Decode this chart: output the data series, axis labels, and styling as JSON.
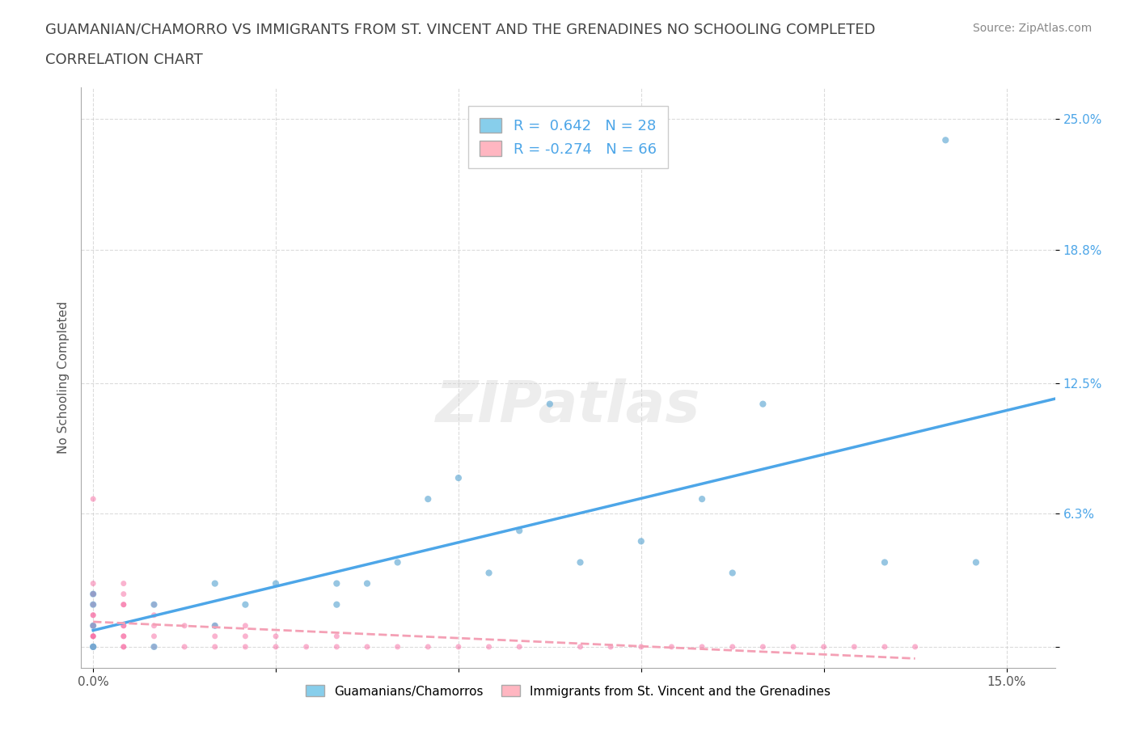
{
  "title_line1": "GUAMANIAN/CHAMORRO VS IMMIGRANTS FROM ST. VINCENT AND THE GRENADINES NO SCHOOLING COMPLETED",
  "title_line2": "CORRELATION CHART",
  "source_text": "Source: ZipAtlas.com",
  "xlabel": "",
  "ylabel": "No Schooling Completed",
  "x_ticks": [
    0.0,
    0.03,
    0.06,
    0.09,
    0.12,
    0.15
  ],
  "x_tick_labels": [
    "0.0%",
    "",
    "",
    "",
    "",
    "15.0%"
  ],
  "y_ticks": [
    0.0,
    0.063,
    0.125,
    0.188,
    0.25
  ],
  "y_tick_labels": [
    "",
    "6.3%",
    "12.5%",
    "18.8%",
    "25.0%"
  ],
  "xlim": [
    -0.002,
    0.158
  ],
  "ylim": [
    -0.01,
    0.265
  ],
  "blue_R": 0.642,
  "blue_N": 28,
  "pink_R": -0.274,
  "pink_N": 66,
  "blue_color": "#87CEEB",
  "blue_marker_color": "#6baed6",
  "pink_color": "#FFB6C1",
  "pink_marker_color": "#f768a1",
  "blue_line_color": "#4da6e8",
  "pink_line_color": "#f4a0b5",
  "watermark": "ZIPatlas",
  "legend_label_blue": "Guamanians/Chamorros",
  "legend_label_pink": "Immigrants from St. Vincent and the Grenadines",
  "blue_scatter_x": [
    0.0,
    0.0,
    0.0,
    0.0,
    0.0,
    0.01,
    0.01,
    0.02,
    0.02,
    0.025,
    0.03,
    0.04,
    0.04,
    0.045,
    0.05,
    0.055,
    0.06,
    0.065,
    0.07,
    0.075,
    0.08,
    0.09,
    0.1,
    0.105,
    0.11,
    0.13,
    0.14,
    0.145
  ],
  "blue_scatter_y": [
    0.0,
    0.0,
    0.01,
    0.02,
    0.025,
    0.0,
    0.02,
    0.01,
    0.03,
    0.02,
    0.03,
    0.02,
    0.03,
    0.03,
    0.04,
    0.07,
    0.08,
    0.035,
    0.055,
    0.115,
    0.04,
    0.05,
    0.07,
    0.035,
    0.115,
    0.04,
    0.24,
    0.04
  ],
  "pink_scatter_x": [
    0.0,
    0.0,
    0.0,
    0.0,
    0.0,
    0.0,
    0.0,
    0.0,
    0.0,
    0.0,
    0.0,
    0.0,
    0.0,
    0.0,
    0.0,
    0.0,
    0.0,
    0.0,
    0.0,
    0.0,
    0.005,
    0.005,
    0.005,
    0.005,
    0.005,
    0.005,
    0.005,
    0.005,
    0.005,
    0.005,
    0.01,
    0.01,
    0.01,
    0.01,
    0.01,
    0.015,
    0.015,
    0.02,
    0.02,
    0.02,
    0.025,
    0.025,
    0.025,
    0.03,
    0.03,
    0.035,
    0.04,
    0.04,
    0.045,
    0.05,
    0.055,
    0.06,
    0.065,
    0.07,
    0.08,
    0.085,
    0.09,
    0.095,
    0.1,
    0.105,
    0.11,
    0.115,
    0.12,
    0.125,
    0.13,
    0.135
  ],
  "pink_scatter_y": [
    0.0,
    0.0,
    0.0,
    0.0,
    0.0,
    0.005,
    0.005,
    0.005,
    0.01,
    0.01,
    0.01,
    0.015,
    0.015,
    0.02,
    0.02,
    0.025,
    0.07,
    0.025,
    0.025,
    0.03,
    0.0,
    0.0,
    0.005,
    0.005,
    0.01,
    0.01,
    0.02,
    0.02,
    0.025,
    0.03,
    0.0,
    0.005,
    0.01,
    0.015,
    0.02,
    0.0,
    0.01,
    0.0,
    0.005,
    0.01,
    0.0,
    0.005,
    0.01,
    0.0,
    0.005,
    0.0,
    0.0,
    0.005,
    0.0,
    0.0,
    0.0,
    0.0,
    0.0,
    0.0,
    0.0,
    0.0,
    0.0,
    0.0,
    0.0,
    0.0,
    0.0,
    0.0,
    0.0,
    0.0,
    0.0,
    0.0
  ]
}
